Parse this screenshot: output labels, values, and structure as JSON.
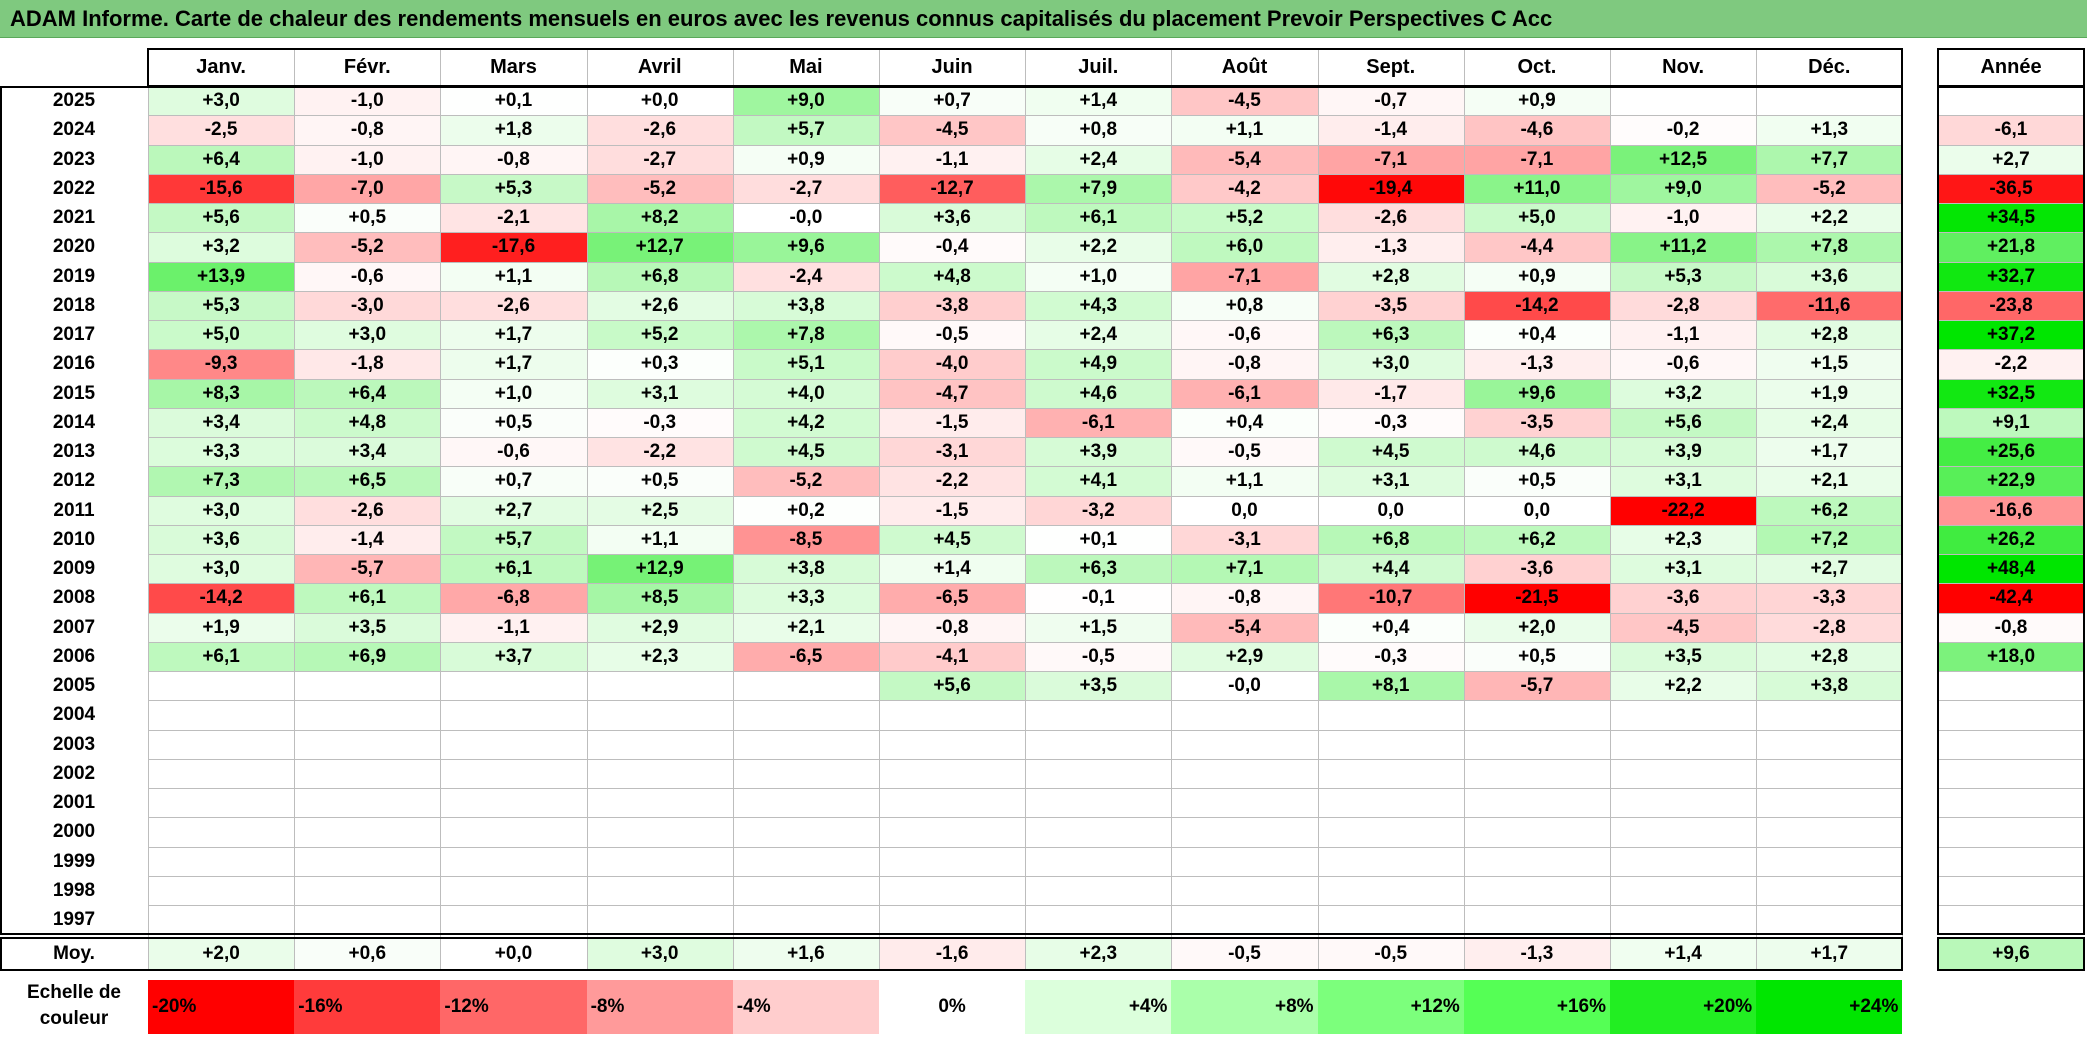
{
  "title": "ADAM Informe. Carte de chaleur des rendements mensuels en euros avec les revenus connus capitalisés du placement Prevoir Perspectives C Acc",
  "chart_data": {
    "type": "heatmap",
    "title": "ADAM Informe. Carte de chaleur des rendements mensuels en euros avec les revenus connus capitalisés du placement Prevoir Perspectives C Acc",
    "columns": [
      "Janv.",
      "Févr.",
      "Mars",
      "Avril",
      "Mai",
      "Juin",
      "Juil.",
      "Août",
      "Sept.",
      "Oct.",
      "Nov.",
      "Déc."
    ],
    "annual_header": "Année",
    "rows": [
      {
        "year": "2025",
        "values": [
          "+3,0",
          "-1,0",
          "+0,1",
          "+0,0",
          "+9,0",
          "+0,7",
          "+1,4",
          "-4,5",
          "-0,7",
          "+0,9",
          "",
          ""
        ],
        "annual": ""
      },
      {
        "year": "2024",
        "values": [
          "-2,5",
          "-0,8",
          "+1,8",
          "-2,6",
          "+5,7",
          "-4,5",
          "+0,8",
          "+1,1",
          "-1,4",
          "-4,6",
          "-0,2",
          "+1,3"
        ],
        "annual": "-6,1"
      },
      {
        "year": "2023",
        "values": [
          "+6,4",
          "-1,0",
          "-0,8",
          "-2,7",
          "+0,9",
          "-1,1",
          "+2,4",
          "-5,4",
          "-7,1",
          "-7,1",
          "+12,5",
          "+7,7"
        ],
        "annual": "+2,7"
      },
      {
        "year": "2022",
        "values": [
          "-15,6",
          "-7,0",
          "+5,3",
          "-5,2",
          "-2,7",
          "-12,7",
          "+7,9",
          "-4,2",
          "-19,4",
          "+11,0",
          "+9,0",
          "-5,2"
        ],
        "annual": "-36,5"
      },
      {
        "year": "2021",
        "values": [
          "+5,6",
          "+0,5",
          "-2,1",
          "+8,2",
          "-0,0",
          "+3,6",
          "+6,1",
          "+5,2",
          "-2,6",
          "+5,0",
          "-1,0",
          "+2,2"
        ],
        "annual": "+34,5"
      },
      {
        "year": "2020",
        "values": [
          "+3,2",
          "-5,2",
          "-17,6",
          "+12,7",
          "+9,6",
          "-0,4",
          "+2,2",
          "+6,0",
          "-1,3",
          "-4,4",
          "+11,2",
          "+7,8"
        ],
        "annual": "+21,8"
      },
      {
        "year": "2019",
        "values": [
          "+13,9",
          "-0,6",
          "+1,1",
          "+6,8",
          "-2,4",
          "+4,8",
          "+1,0",
          "-7,1",
          "+2,8",
          "+0,9",
          "+5,3",
          "+3,6"
        ],
        "annual": "+32,7"
      },
      {
        "year": "2018",
        "values": [
          "+5,3",
          "-3,0",
          "-2,6",
          "+2,6",
          "+3,8",
          "-3,8",
          "+4,3",
          "+0,8",
          "-3,5",
          "-14,2",
          "-2,8",
          "-11,6"
        ],
        "annual": "-23,8"
      },
      {
        "year": "2017",
        "values": [
          "+5,0",
          "+3,0",
          "+1,7",
          "+5,2",
          "+7,8",
          "-0,5",
          "+2,4",
          "-0,6",
          "+6,3",
          "+0,4",
          "-1,1",
          "+2,8"
        ],
        "annual": "+37,2"
      },
      {
        "year": "2016",
        "values": [
          "-9,3",
          "-1,8",
          "+1,7",
          "+0,3",
          "+5,1",
          "-4,0",
          "+4,9",
          "-0,8",
          "+3,0",
          "-1,3",
          "-0,6",
          "+1,5"
        ],
        "annual": "-2,2"
      },
      {
        "year": "2015",
        "values": [
          "+8,3",
          "+6,4",
          "+1,0",
          "+3,1",
          "+4,0",
          "-4,7",
          "+4,6",
          "-6,1",
          "-1,7",
          "+9,6",
          "+3,2",
          "+1,9"
        ],
        "annual": "+32,5"
      },
      {
        "year": "2014",
        "values": [
          "+3,4",
          "+4,8",
          "+0,5",
          "-0,3",
          "+4,2",
          "-1,5",
          "-6,1",
          "+0,4",
          "-0,3",
          "-3,5",
          "+5,6",
          "+2,4"
        ],
        "annual": "+9,1"
      },
      {
        "year": "2013",
        "values": [
          "+3,3",
          "+3,4",
          "-0,6",
          "-2,2",
          "+4,5",
          "-3,1",
          "+3,9",
          "-0,5",
          "+4,5",
          "+4,6",
          "+3,9",
          "+1,7"
        ],
        "annual": "+25,6"
      },
      {
        "year": "2012",
        "values": [
          "+7,3",
          "+6,5",
          "+0,7",
          "+0,5",
          "-5,2",
          "-2,2",
          "+4,1",
          "+1,1",
          "+3,1",
          "+0,5",
          "+3,1",
          "+2,1"
        ],
        "annual": "+22,9"
      },
      {
        "year": "2011",
        "values": [
          "+3,0",
          "-2,6",
          "+2,7",
          "+2,5",
          "+0,2",
          "-1,5",
          "-3,2",
          "0,0",
          "0,0",
          "0,0",
          "-22,2",
          "+6,2"
        ],
        "annual": "-16,6"
      },
      {
        "year": "2010",
        "values": [
          "+3,6",
          "-1,4",
          "+5,7",
          "+1,1",
          "-8,5",
          "+4,5",
          "+0,1",
          "-3,1",
          "+6,8",
          "+6,2",
          "+2,3",
          "+7,2"
        ],
        "annual": "+26,2"
      },
      {
        "year": "2009",
        "values": [
          "+3,0",
          "-5,7",
          "+6,1",
          "+12,9",
          "+3,8",
          "+1,4",
          "+6,3",
          "+7,1",
          "+4,4",
          "-3,6",
          "+3,1",
          "+2,7"
        ],
        "annual": "+48,4"
      },
      {
        "year": "2008",
        "values": [
          "-14,2",
          "+6,1",
          "-6,8",
          "+8,5",
          "+3,3",
          "-6,5",
          "-0,1",
          "-0,8",
          "-10,7",
          "-21,5",
          "-3,6",
          "-3,3"
        ],
        "annual": "-42,4"
      },
      {
        "year": "2007",
        "values": [
          "+1,9",
          "+3,5",
          "-1,1",
          "+2,9",
          "+2,1",
          "-0,8",
          "+1,5",
          "-5,4",
          "+0,4",
          "+2,0",
          "-4,5",
          "-2,8"
        ],
        "annual": "-0,8"
      },
      {
        "year": "2006",
        "values": [
          "+6,1",
          "+6,9",
          "+3,7",
          "+2,3",
          "-6,5",
          "-4,1",
          "-0,5",
          "+2,9",
          "-0,3",
          "+0,5",
          "+3,5",
          "+2,8"
        ],
        "annual": "+18,0"
      },
      {
        "year": "2005",
        "values": [
          "",
          "",
          "",
          "",
          "",
          "+5,6",
          "+3,5",
          "-0,0",
          "+8,1",
          "-5,7",
          "+2,2",
          "+3,8"
        ],
        "annual": ""
      },
      {
        "year": "2004",
        "values": [
          "",
          "",
          "",
          "",
          "",
          "",
          "",
          "",
          "",
          "",
          "",
          ""
        ],
        "annual": ""
      },
      {
        "year": "2003",
        "values": [
          "",
          "",
          "",
          "",
          "",
          "",
          "",
          "",
          "",
          "",
          "",
          ""
        ],
        "annual": ""
      },
      {
        "year": "2002",
        "values": [
          "",
          "",
          "",
          "",
          "",
          "",
          "",
          "",
          "",
          "",
          "",
          ""
        ],
        "annual": ""
      },
      {
        "year": "2001",
        "values": [
          "",
          "",
          "",
          "",
          "",
          "",
          "",
          "",
          "",
          "",
          "",
          ""
        ],
        "annual": ""
      },
      {
        "year": "2000",
        "values": [
          "",
          "",
          "",
          "",
          "",
          "",
          "",
          "",
          "",
          "",
          "",
          ""
        ],
        "annual": ""
      },
      {
        "year": "1999",
        "values": [
          "",
          "",
          "",
          "",
          "",
          "",
          "",
          "",
          "",
          "",
          "",
          ""
        ],
        "annual": ""
      },
      {
        "year": "1998",
        "values": [
          "",
          "",
          "",
          "",
          "",
          "",
          "",
          "",
          "",
          "",
          "",
          ""
        ],
        "annual": ""
      },
      {
        "year": "1997",
        "values": [
          "",
          "",
          "",
          "",
          "",
          "",
          "",
          "",
          "",
          "",
          "",
          ""
        ],
        "annual": ""
      }
    ],
    "average": {
      "label": "Moy.",
      "values": [
        "+2,0",
        "+0,6",
        "+0,0",
        "+3,0",
        "+1,6",
        "-1,6",
        "+2,3",
        "-0,5",
        "-0,5",
        "-1,3",
        "+1,4",
        "+1,7"
      ],
      "annual": "+9,6"
    },
    "color_scale": {
      "label": "Echelle de couleur",
      "stops": [
        {
          "label": "-20%",
          "value": -20,
          "color": "#ff0000"
        },
        {
          "label": "-16%",
          "value": -16,
          "color": "#ff3b3b"
        },
        {
          "label": "-12%",
          "value": -12,
          "color": "#ff6767"
        },
        {
          "label": "-8%",
          "value": -8,
          "color": "#ff9a9a"
        },
        {
          "label": "-4%",
          "value": -4,
          "color": "#ffcdcd"
        },
        {
          "label": "0%",
          "value": 0,
          "color": "#ffffff"
        },
        {
          "label": "+4%",
          "value": 4,
          "color": "#dcffdc"
        },
        {
          "label": "+8%",
          "value": 8,
          "color": "#aaffaa"
        },
        {
          "label": "+12%",
          "value": 12,
          "color": "#7cff7c"
        },
        {
          "label": "+16%",
          "value": 16,
          "color": "#55ff55"
        },
        {
          "label": "+20%",
          "value": 20,
          "color": "#22ee22"
        },
        {
          "label": "+24%",
          "value": 24,
          "color": "#00e600"
        }
      ]
    }
  },
  "colors": {
    "title_bar": "#7fc97f",
    "negative_max": "#ff0000",
    "positive_max": "#00e600",
    "neutral": "#ffffff"
  }
}
